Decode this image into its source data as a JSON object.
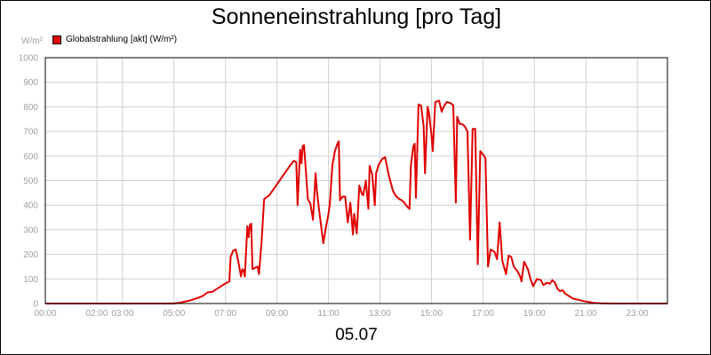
{
  "chart_data": {
    "type": "line",
    "title": "Sonneneinstrahlung [pro Tag]",
    "y_unit": "W/m²",
    "date_label": "05.07",
    "ylim": [
      0,
      1000
    ],
    "y_ticks": [
      "0",
      "100",
      "200",
      "300",
      "400",
      "500",
      "600",
      "700",
      "800",
      "900",
      "1000"
    ],
    "x_ticks": [
      {
        "hour": 0,
        "label": "00:00"
      },
      {
        "hour": 2,
        "label": "02:00"
      },
      {
        "hour": 3,
        "label": "03:00"
      },
      {
        "hour": 5,
        "label": "05:00"
      },
      {
        "hour": 7,
        "label": "07:00"
      },
      {
        "hour": 9,
        "label": "09:00"
      },
      {
        "hour": 11,
        "label": "11:00"
      },
      {
        "hour": 13,
        "label": "13:00"
      },
      {
        "hour": 15,
        "label": "15:00"
      },
      {
        "hour": 17,
        "label": "17:00"
      },
      {
        "hour": 19,
        "label": "19:00"
      },
      {
        "hour": 21,
        "label": "21:00"
      },
      {
        "hour": 23,
        "label": "23:00"
      }
    ],
    "xlim": [
      0,
      24.17
    ],
    "grid": true,
    "legend_position": "top-left",
    "series": [
      {
        "name": "Globalstrahlung [akt] (W/m²)",
        "color": "#e00000",
        "points": [
          [
            0,
            0
          ],
          [
            5.0,
            0
          ],
          [
            5.3,
            5
          ],
          [
            5.6,
            12
          ],
          [
            5.9,
            22
          ],
          [
            6.1,
            30
          ],
          [
            6.3,
            45
          ],
          [
            6.5,
            48
          ],
          [
            6.7,
            62
          ],
          [
            6.9,
            75
          ],
          [
            7.05,
            85
          ],
          [
            7.15,
            90
          ],
          [
            7.2,
            190
          ],
          [
            7.3,
            215
          ],
          [
            7.4,
            220
          ],
          [
            7.5,
            170
          ],
          [
            7.6,
            110
          ],
          [
            7.65,
            140
          ],
          [
            7.7,
            135
          ],
          [
            7.75,
            110
          ],
          [
            7.85,
            315
          ],
          [
            7.9,
            270
          ],
          [
            7.95,
            320
          ],
          [
            8.0,
            325
          ],
          [
            8.05,
            140
          ],
          [
            8.15,
            145
          ],
          [
            8.25,
            150
          ],
          [
            8.3,
            120
          ],
          [
            8.4,
            250
          ],
          [
            8.5,
            425
          ],
          [
            8.7,
            440
          ],
          [
            8.9,
            470
          ],
          [
            9.1,
            500
          ],
          [
            9.3,
            530
          ],
          [
            9.5,
            560
          ],
          [
            9.65,
            580
          ],
          [
            9.75,
            575
          ],
          [
            9.8,
            400
          ],
          [
            9.9,
            625
          ],
          [
            9.95,
            570
          ],
          [
            10.0,
            640
          ],
          [
            10.05,
            645
          ],
          [
            10.2,
            425
          ],
          [
            10.3,
            405
          ],
          [
            10.4,
            340
          ],
          [
            10.5,
            530
          ],
          [
            10.55,
            460
          ],
          [
            10.65,
            370
          ],
          [
            10.8,
            245
          ],
          [
            10.9,
            310
          ],
          [
            11.0,
            365
          ],
          [
            11.05,
            400
          ],
          [
            11.15,
            560
          ],
          [
            11.25,
            620
          ],
          [
            11.35,
            650
          ],
          [
            11.4,
            660
          ],
          [
            11.45,
            420
          ],
          [
            11.55,
            435
          ],
          [
            11.65,
            435
          ],
          [
            11.75,
            330
          ],
          [
            11.85,
            410
          ],
          [
            11.95,
            280
          ],
          [
            12.0,
            365
          ],
          [
            12.1,
            285
          ],
          [
            12.2,
            480
          ],
          [
            12.3,
            445
          ],
          [
            12.35,
            440
          ],
          [
            12.45,
            500
          ],
          [
            12.55,
            385
          ],
          [
            12.6,
            560
          ],
          [
            12.7,
            525
          ],
          [
            12.8,
            400
          ],
          [
            12.85,
            530
          ],
          [
            12.95,
            565
          ],
          [
            13.1,
            590
          ],
          [
            13.2,
            595
          ],
          [
            13.35,
            520
          ],
          [
            13.5,
            460
          ],
          [
            13.6,
            440
          ],
          [
            13.75,
            425
          ],
          [
            13.85,
            420
          ],
          [
            13.95,
            410
          ],
          [
            14.05,
            395
          ],
          [
            14.15,
            385
          ],
          [
            14.2,
            560
          ],
          [
            14.3,
            640
          ],
          [
            14.35,
            650
          ],
          [
            14.4,
            430
          ],
          [
            14.5,
            810
          ],
          [
            14.6,
            805
          ],
          [
            14.7,
            720
          ],
          [
            14.75,
            530
          ],
          [
            14.85,
            800
          ],
          [
            14.9,
            780
          ],
          [
            15.0,
            690
          ],
          [
            15.05,
            620
          ],
          [
            15.15,
            820
          ],
          [
            15.3,
            825
          ],
          [
            15.4,
            780
          ],
          [
            15.5,
            805
          ],
          [
            15.6,
            820
          ],
          [
            15.75,
            815
          ],
          [
            15.85,
            805
          ],
          [
            15.95,
            410
          ],
          [
            16.0,
            760
          ],
          [
            16.1,
            730
          ],
          [
            16.2,
            730
          ],
          [
            16.3,
            720
          ],
          [
            16.4,
            700
          ],
          [
            16.5,
            260
          ],
          [
            16.6,
            710
          ],
          [
            16.7,
            710
          ],
          [
            16.8,
            160
          ],
          [
            16.9,
            620
          ],
          [
            17.05,
            600
          ],
          [
            17.1,
            590
          ],
          [
            17.2,
            150
          ],
          [
            17.3,
            220
          ],
          [
            17.45,
            210
          ],
          [
            17.55,
            180
          ],
          [
            17.65,
            330
          ],
          [
            17.75,
            175
          ],
          [
            17.9,
            120
          ],
          [
            18.0,
            195
          ],
          [
            18.1,
            190
          ],
          [
            18.2,
            150
          ],
          [
            18.35,
            130
          ],
          [
            18.45,
            110
          ],
          [
            18.5,
            90
          ],
          [
            18.6,
            170
          ],
          [
            18.75,
            140
          ],
          [
            18.85,
            100
          ],
          [
            18.95,
            70
          ],
          [
            19.1,
            100
          ],
          [
            19.25,
            95
          ],
          [
            19.35,
            75
          ],
          [
            19.5,
            85
          ],
          [
            19.6,
            80
          ],
          [
            19.7,
            95
          ],
          [
            19.8,
            85
          ],
          [
            19.9,
            60
          ],
          [
            20.0,
            50
          ],
          [
            20.1,
            55
          ],
          [
            20.2,
            40
          ],
          [
            20.35,
            30
          ],
          [
            20.5,
            20
          ],
          [
            20.7,
            15
          ],
          [
            20.9,
            10
          ],
          [
            21.1,
            6
          ],
          [
            21.3,
            3
          ],
          [
            21.6,
            1
          ],
          [
            22.0,
            0
          ],
          [
            24.17,
            0
          ]
        ]
      }
    ]
  }
}
